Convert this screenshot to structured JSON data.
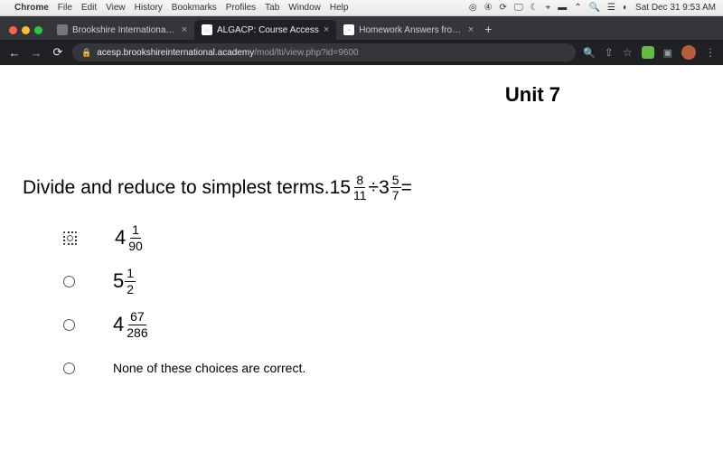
{
  "menubar": {
    "app": "Chrome",
    "items": [
      "File",
      "Edit",
      "View",
      "History",
      "Bookmarks",
      "Profiles",
      "Tab",
      "Window",
      "Help"
    ],
    "clock": "Sat Dec 31 9:53 AM"
  },
  "traffic": {
    "close": "#ff5f57",
    "min": "#febc2e",
    "max": "#28c840"
  },
  "tabs": [
    {
      "title": "Brookshire International Acade",
      "favcolor": "#777",
      "favtext": ""
    },
    {
      "title": "ALGACP: Course Access",
      "favcolor": "#fff",
      "favtext": "▣",
      "active": true
    },
    {
      "title": "Homework Answers from Subj",
      "favcolor": "#fff",
      "favtext": "▪"
    }
  ],
  "url": {
    "host": "acesp.brookshireinternational.academy",
    "path": "/mod/lti/view.php?id=9600"
  },
  "page": {
    "unit_title": "Unit 7",
    "prompt": "Divide and reduce to simplest terms.  ",
    "q_a": {
      "whole": "15",
      "num": "8",
      "den": "11"
    },
    "op": " ÷ ",
    "q_b": {
      "whole": "3",
      "num": "5",
      "den": "7"
    },
    "eq": " =",
    "choices": [
      {
        "type": "mixed",
        "whole": "4",
        "num": "1",
        "den": "90",
        "selected": true
      },
      {
        "type": "mixed",
        "whole": "5",
        "num": "1",
        "den": "2"
      },
      {
        "type": "mixed",
        "whole": "4",
        "num": "67",
        "den": "286"
      },
      {
        "type": "text",
        "text": "None of these choices are correct."
      }
    ]
  }
}
